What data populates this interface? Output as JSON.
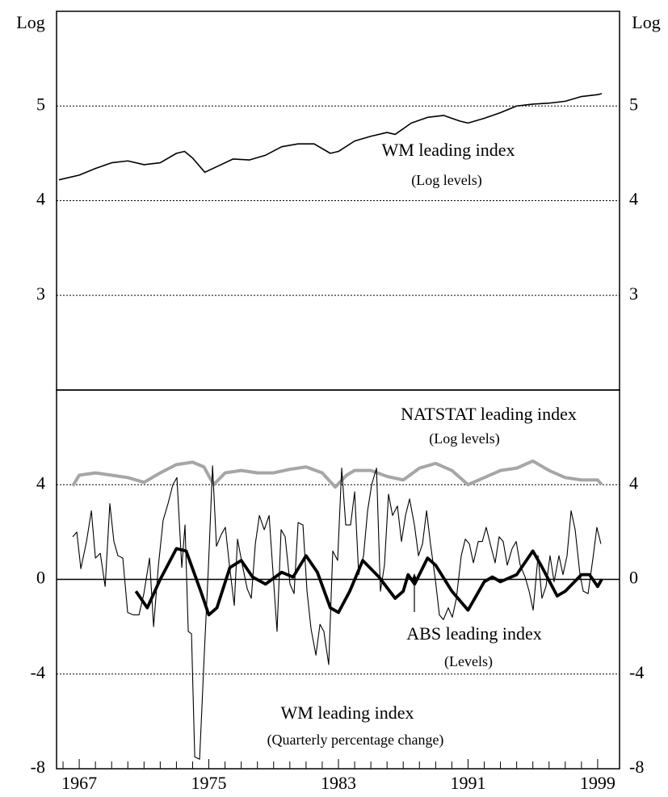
{
  "chart_data": [
    {
      "type": "line",
      "y_label": "Log",
      "y2_label": "Log",
      "xlim": [
        1965.6,
        2000.35
      ],
      "ylim": [
        2,
        6
      ],
      "yticks": [
        3,
        4,
        5
      ],
      "y2lim": [
        2,
        6
      ],
      "y2ticks": [
        3,
        4,
        5
      ],
      "grid": true,
      "annotations": [
        "WM leading index",
        "(Log levels)"
      ],
      "series": [
        {
          "name": "WM leading index",
          "color": "#000000",
          "width": 1.6,
          "x": [
            1965.75,
            1967,
            1968,
            1969,
            1970,
            1971,
            1972,
            1973,
            1973.5,
            1974,
            1974.75,
            1975.5,
            1976.5,
            1977.5,
            1978.5,
            1979.5,
            1980.5,
            1981.5,
            1982.5,
            1983,
            1984,
            1985,
            1986,
            1986.5,
            1987.5,
            1988.5,
            1989.5,
            1990.5,
            1991,
            1992,
            1993,
            1994,
            1995,
            1996,
            1997,
            1998,
            1999,
            1999.25
          ],
          "values": [
            4.22,
            4.27,
            4.34,
            4.4,
            4.42,
            4.38,
            4.4,
            4.5,
            4.52,
            4.45,
            4.3,
            4.36,
            4.44,
            4.43,
            4.48,
            4.57,
            4.6,
            4.6,
            4.5,
            4.52,
            4.63,
            4.68,
            4.72,
            4.7,
            4.82,
            4.88,
            4.9,
            4.84,
            4.82,
            4.87,
            4.93,
            5.0,
            5.02,
            5.03,
            5.05,
            5.1,
            5.12,
            5.13
          ]
        }
      ]
    },
    {
      "type": "line",
      "xlim": [
        1965.6,
        2000.35
      ],
      "ylim": [
        -8,
        8
      ],
      "yticks": [
        -8,
        -4,
        0,
        4
      ],
      "y2lim": [
        -8,
        8
      ],
      "y2ticks": [
        -8,
        -4,
        0,
        4
      ],
      "grid": true,
      "zero_line": true,
      "xticks": [
        1967,
        1975,
        1983,
        1991,
        1999
      ],
      "xminorticks": [
        1966,
        1968,
        1969,
        1970,
        1971,
        1972,
        1973,
        1974,
        1976,
        1977,
        1978,
        1979,
        1980,
        1981,
        1982,
        1984,
        1985,
        1986,
        1987,
        1988,
        1989,
        1990,
        1992,
        1993,
        1994,
        1995,
        1996,
        1997,
        1998
      ],
      "annotations": [
        "NATSTAT leading index",
        "(Log levels)",
        "ABS leading index",
        "(Levels)",
        "WM leading index",
        "(Quarterly percentage change)"
      ],
      "series": [
        {
          "name": "NATSTAT leading index",
          "color": "#a6a6a6",
          "width": 4,
          "x": [
            1966.6,
            1967,
            1968,
            1969,
            1970,
            1971,
            1972,
            1973,
            1974,
            1974.7,
            1975.3,
            1976,
            1977,
            1978,
            1979,
            1980,
            1981,
            1982,
            1982.8,
            1983.5,
            1984,
            1985,
            1986,
            1987,
            1988,
            1989,
            1990,
            1991,
            1992,
            1993,
            1994,
            1995,
            1996,
            1997,
            1998,
            1999,
            1999.25
          ],
          "values": [
            3.95,
            4.4,
            4.5,
            4.4,
            4.3,
            4.1,
            4.5,
            4.85,
            4.95,
            4.75,
            4.0,
            4.5,
            4.6,
            4.5,
            4.5,
            4.65,
            4.75,
            4.5,
            3.9,
            4.4,
            4.6,
            4.6,
            4.35,
            4.2,
            4.7,
            4.9,
            4.6,
            4.0,
            4.3,
            4.6,
            4.7,
            5.0,
            4.6,
            4.3,
            4.2,
            4.2,
            4.0
          ]
        },
        {
          "name": "WM leading index",
          "color": "#000000",
          "width": 1.1,
          "x": [
            1966.6,
            1966.85,
            1967.1,
            1967.45,
            1967.75,
            1968.0,
            1968.3,
            1968.6,
            1968.89,
            1969.14,
            1969.39,
            1969.69,
            1969.99,
            1970.34,
            1970.69,
            1970.99,
            1971.34,
            1971.59,
            1971.89,
            1972.18,
            1972.48,
            1972.78,
            1973.03,
            1973.33,
            1973.53,
            1973.73,
            1973.93,
            1974.13,
            1974.43,
            1974.73,
            1974.98,
            1975.23,
            1975.47,
            1975.77,
            1976.02,
            1976.27,
            1976.57,
            1976.77,
            1977.07,
            1977.37,
            1977.62,
            1977.87,
            1978.12,
            1978.42,
            1978.72,
            1978.96,
            1979.21,
            1979.46,
            1979.71,
            1980.01,
            1980.26,
            1980.51,
            1980.81,
            1981.06,
            1981.31,
            1981.61,
            1981.86,
            1982.1,
            1982.4,
            1982.65,
            1982.95,
            1983.2,
            1983.45,
            1983.75,
            1984.0,
            1984.25,
            1984.55,
            1984.8,
            1985.05,
            1985.35,
            1985.59,
            1985.84,
            1986.09,
            1986.34,
            1986.64,
            1986.89,
            1987.14,
            1987.39,
            1987.69,
            1987.94,
            1988.19,
            1988.44,
            1988.68,
            1988.98,
            1989.23,
            1989.48,
            1989.78,
            1990.03,
            1990.28,
            1990.58,
            1990.83,
            1991.08,
            1991.33,
            1991.63,
            1991.88,
            1992.12,
            1992.37,
            1992.67,
            1992.92,
            1993.17,
            1993.42,
            1993.72,
            1993.97,
            1994.22,
            1994.52,
            1994.77,
            1995.02,
            1995.32,
            1995.56,
            1995.81,
            1996.06,
            1996.31,
            1996.61,
            1996.86,
            1997.11,
            1997.36,
            1997.61,
            1997.91,
            1998.11,
            1998.41,
            1998.71,
            1998.95,
            1999.2
          ],
          "values": [
            1.8,
            2.0,
            0.45,
            1.6,
            2.9,
            0.9,
            1.1,
            -0.3,
            3.2,
            1.6,
            1.0,
            0.9,
            -1.4,
            -1.5,
            -1.5,
            -0.6,
            0.9,
            -2.0,
            0.6,
            2.5,
            3.2,
            4.0,
            4.3,
            0.5,
            2.3,
            -2.2,
            -2.3,
            -7.5,
            -7.6,
            -3.0,
            0.6,
            4.8,
            1.4,
            1.9,
            2.2,
            0.6,
            -1.1,
            1.7,
            0.6,
            -0.4,
            -0.8,
            1.5,
            2.7,
            2.1,
            2.7,
            0.3,
            -2.2,
            2.1,
            1.8,
            -0.2,
            -0.6,
            2.4,
            2.3,
            -0.5,
            -2.1,
            -3.2,
            -1.9,
            -2.2,
            -3.6,
            1.2,
            0.8,
            4.7,
            2.3,
            2.3,
            3.7,
            0.2,
            1.0,
            2.9,
            4.0,
            4.7,
            -0.5,
            0.6,
            3.6,
            2.7,
            3.1,
            1.6,
            2.7,
            3.4,
            2.3,
            1.0,
            1.5,
            2.9,
            1.5,
            0.0,
            -1.5,
            -1.7,
            -1.2,
            -1.6,
            -0.8,
            1.0,
            1.7,
            1.5,
            0.7,
            1.6,
            1.6,
            2.2,
            1.5,
            0.7,
            1.8,
            1.6,
            0.6,
            1.3,
            1.6,
            0.6,
            0.1,
            -0.5,
            -1.3,
            1.0,
            -0.8,
            -0.3,
            1.0,
            -0.1,
            1.0,
            0.2,
            1.0,
            2.9,
            2.1,
            0.2,
            -0.5,
            -0.6,
            0.9,
            2.2,
            1.5
          ]
        },
        {
          "name": "ABS leading index",
          "color": "#000000",
          "width": 3.8,
          "x": [
            1970.5,
            1971.2,
            1972,
            1973,
            1973.6,
            1974.5,
            1975,
            1975.5,
            1976.3,
            1977,
            1977.7,
            1978.5,
            1979.5,
            1980.2,
            1981,
            1981.7,
            1982.5,
            1983,
            1983.7,
            1984.5,
            1985.5,
            1986.5,
            1987,
            1987.3,
            1987.7,
            1988.5,
            1989,
            1990,
            1991,
            1992,
            1992.5,
            1993,
            1994,
            1995,
            1995.5,
            1996.5,
            1997,
            1998,
            1998.5,
            1999,
            1999.25
          ],
          "values": [
            -0.5,
            -1.2,
            0,
            1.3,
            1.2,
            -0.5,
            -1.5,
            -1.2,
            0.5,
            0.8,
            0.1,
            -0.2,
            0.3,
            0.1,
            1.0,
            0.3,
            -1.2,
            -1.4,
            -0.5,
            0.8,
            0.1,
            -0.8,
            -0.5,
            0.2,
            -0.2,
            0.9,
            0.6,
            -0.5,
            -1.3,
            -0.1,
            0.1,
            -0.1,
            0.2,
            1.2,
            0.6,
            -0.7,
            -0.5,
            0.2,
            0.2,
            -0.3,
            0.0
          ]
        }
      ]
    }
  ]
}
